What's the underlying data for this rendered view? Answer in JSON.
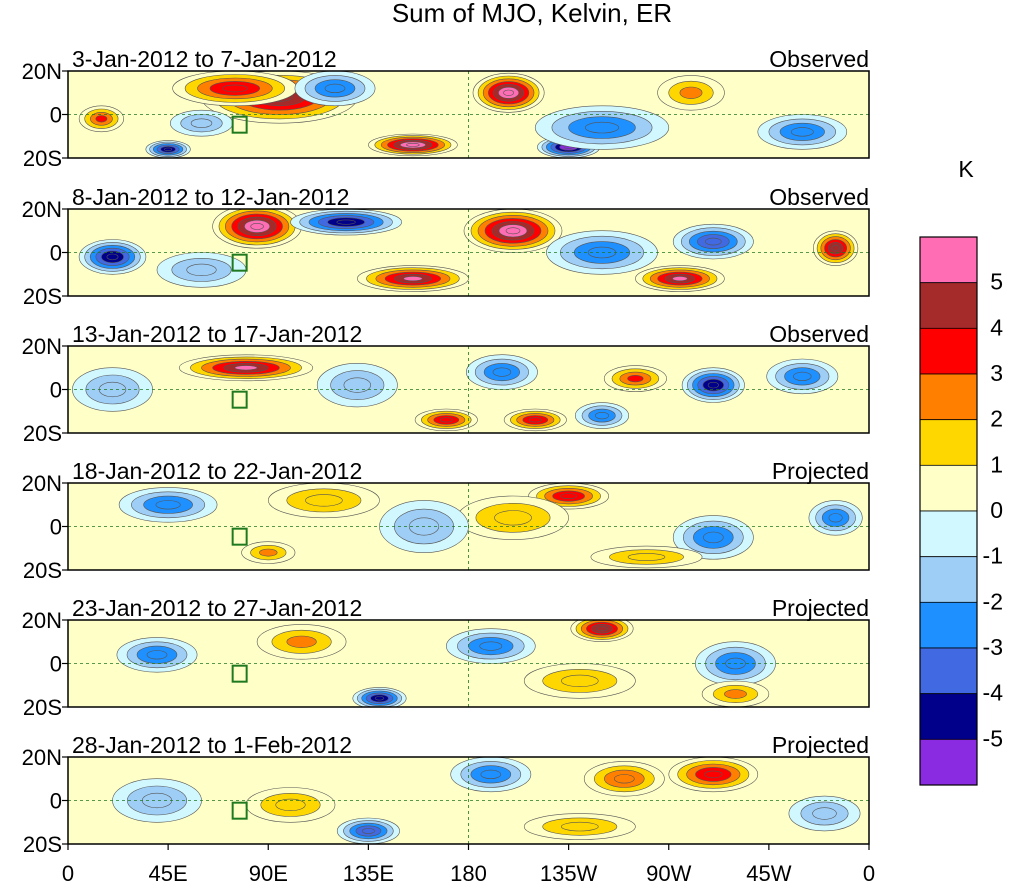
{
  "chart_data": {
    "type": "heatmap",
    "title": "Sum of MJO, Kelvin, ER",
    "units_label": "K",
    "lon_labels": [
      "0",
      "45E",
      "90E",
      "135E",
      "180",
      "135W",
      "90W",
      "45W",
      "0"
    ],
    "lat_labels": [
      "20N",
      "0",
      "20S"
    ],
    "lon_range": [
      0,
      360
    ],
    "lat_range": [
      -20,
      20
    ],
    "colorbar": {
      "labels": [
        "5",
        "4",
        "3",
        "2",
        "1",
        "0",
        "-1",
        "-2",
        "-3",
        "-4",
        "-5"
      ],
      "colors": [
        "#ff6eb4",
        "#a52a2a",
        "#ff0000",
        "#ff7f00",
        "#ffd700",
        "#ffffc8",
        "#d2f8ff",
        "#9ecdf5",
        "#1e90ff",
        "#4169e1",
        "#00008b",
        "#8a2be2"
      ]
    },
    "panels": [
      {
        "date_range": "3-Jan-2012 to 7-Jan-2012",
        "kind": "Observed",
        "blobs": [
          {
            "lon": 95,
            "lat": 8,
            "val": 4.5,
            "rx": 35,
            "ry": 12
          },
          {
            "lon": 75,
            "lat": 12,
            "val": 3.5,
            "rx": 28,
            "ry": 8
          },
          {
            "lon": 198,
            "lat": 10,
            "val": 5.5,
            "rx": 16,
            "ry": 9
          },
          {
            "lon": 155,
            "lat": -14,
            "val": 5.5,
            "rx": 20,
            "ry": 5
          },
          {
            "lon": 225,
            "lat": -15,
            "val": -5.5,
            "rx": 14,
            "ry": 5
          },
          {
            "lon": 240,
            "lat": -6,
            "val": -3,
            "rx": 30,
            "ry": 10
          },
          {
            "lon": 45,
            "lat": -16,
            "val": -5,
            "rx": 10,
            "ry": 4
          },
          {
            "lon": 120,
            "lat": 12,
            "val": -3,
            "rx": 18,
            "ry": 8
          },
          {
            "lon": 15,
            "lat": -2,
            "val": 3,
            "rx": 10,
            "ry": 6
          },
          {
            "lon": 330,
            "lat": -8,
            "val": -2.5,
            "rx": 20,
            "ry": 8
          },
          {
            "lon": 280,
            "lat": 10,
            "val": 2,
            "rx": 15,
            "ry": 8
          },
          {
            "lon": 60,
            "lat": -4,
            "val": -2,
            "rx": 14,
            "ry": 6
          }
        ]
      },
      {
        "date_range": "8-Jan-2012 to 12-Jan-2012",
        "kind": "Observed",
        "blobs": [
          {
            "lon": 85,
            "lat": 12,
            "val": 5.5,
            "rx": 20,
            "ry": 10
          },
          {
            "lon": 200,
            "lat": 10,
            "val": 5.5,
            "rx": 22,
            "ry": 10
          },
          {
            "lon": 155,
            "lat": -12,
            "val": 5,
            "rx": 25,
            "ry": 6
          },
          {
            "lon": 275,
            "lat": -12,
            "val": 5,
            "rx": 20,
            "ry": 6
          },
          {
            "lon": 20,
            "lat": -2,
            "val": -5,
            "rx": 15,
            "ry": 8
          },
          {
            "lon": 125,
            "lat": 14,
            "val": -4.5,
            "rx": 25,
            "ry": 6
          },
          {
            "lon": 345,
            "lat": 2,
            "val": 4.5,
            "rx": 10,
            "ry": 8
          },
          {
            "lon": 290,
            "lat": 5,
            "val": -4,
            "rx": 18,
            "ry": 8
          },
          {
            "lon": 240,
            "lat": 0,
            "val": -2.5,
            "rx": 25,
            "ry": 10
          },
          {
            "lon": 60,
            "lat": -8,
            "val": -2,
            "rx": 20,
            "ry": 8
          }
        ]
      },
      {
        "date_range": "13-Jan-2012 to 17-Jan-2012",
        "kind": "Observed",
        "blobs": [
          {
            "lon": 80,
            "lat": 10,
            "val": 5,
            "rx": 30,
            "ry": 6
          },
          {
            "lon": 290,
            "lat": 2,
            "val": -4.5,
            "rx": 14,
            "ry": 8
          },
          {
            "lon": 170,
            "lat": -14,
            "val": 3.5,
            "rx": 14,
            "ry": 5
          },
          {
            "lon": 210,
            "lat": -14,
            "val": 3.5,
            "rx": 14,
            "ry": 5
          },
          {
            "lon": 255,
            "lat": 5,
            "val": 3,
            "rx": 14,
            "ry": 6
          },
          {
            "lon": 195,
            "lat": 8,
            "val": -3,
            "rx": 16,
            "ry": 8
          },
          {
            "lon": 240,
            "lat": -12,
            "val": -3,
            "rx": 12,
            "ry": 6
          },
          {
            "lon": 20,
            "lat": 0,
            "val": -2,
            "rx": 18,
            "ry": 10
          },
          {
            "lon": 130,
            "lat": 2,
            "val": -2,
            "rx": 18,
            "ry": 10
          },
          {
            "lon": 330,
            "lat": 6,
            "val": -2.5,
            "rx": 16,
            "ry": 8
          }
        ]
      },
      {
        "date_range": "18-Jan-2012 to 22-Jan-2012",
        "kind": "Projected",
        "blobs": [
          {
            "lon": 225,
            "lat": 14,
            "val": 3.5,
            "rx": 18,
            "ry": 6
          },
          {
            "lon": 200,
            "lat": 4,
            "val": 1.5,
            "rx": 25,
            "ry": 10
          },
          {
            "lon": 115,
            "lat": 12,
            "val": 1.5,
            "rx": 25,
            "ry": 8
          },
          {
            "lon": 45,
            "lat": 10,
            "val": -3,
            "rx": 22,
            "ry": 8
          },
          {
            "lon": 160,
            "lat": 0,
            "val": -2,
            "rx": 20,
            "ry": 12
          },
          {
            "lon": 290,
            "lat": -5,
            "val": -2.5,
            "rx": 18,
            "ry": 10
          },
          {
            "lon": 345,
            "lat": 4,
            "val": -3,
            "rx": 12,
            "ry": 8
          },
          {
            "lon": 90,
            "lat": -12,
            "val": 2,
            "rx": 12,
            "ry": 5
          },
          {
            "lon": 260,
            "lat": -14,
            "val": 1.5,
            "rx": 25,
            "ry": 5
          }
        ]
      },
      {
        "date_range": "23-Jan-2012 to 27-Jan-2012",
        "kind": "Projected",
        "blobs": [
          {
            "lon": 240,
            "lat": 16,
            "val": 4.5,
            "rx": 14,
            "ry": 6
          },
          {
            "lon": 140,
            "lat": -16,
            "val": -4.5,
            "rx": 12,
            "ry": 5
          },
          {
            "lon": 40,
            "lat": 4,
            "val": -3,
            "rx": 18,
            "ry": 8
          },
          {
            "lon": 190,
            "lat": 8,
            "val": -3,
            "rx": 20,
            "ry": 8
          },
          {
            "lon": 300,
            "lat": 0,
            "val": -2.5,
            "rx": 18,
            "ry": 10
          },
          {
            "lon": 105,
            "lat": 10,
            "val": 2,
            "rx": 20,
            "ry": 8
          },
          {
            "lon": 230,
            "lat": -8,
            "val": 1.5,
            "rx": 25,
            "ry": 8
          },
          {
            "lon": 300,
            "lat": -14,
            "val": 2,
            "rx": 15,
            "ry": 6
          }
        ]
      },
      {
        "date_range": "28-Jan-2012 to 1-Feb-2012",
        "kind": "Projected",
        "blobs": [
          {
            "lon": 290,
            "lat": 12,
            "val": 3.5,
            "rx": 20,
            "ry": 8
          },
          {
            "lon": 250,
            "lat": 10,
            "val": 2.5,
            "rx": 18,
            "ry": 8
          },
          {
            "lon": 190,
            "lat": 12,
            "val": -3,
            "rx": 18,
            "ry": 8
          },
          {
            "lon": 135,
            "lat": -14,
            "val": -3.5,
            "rx": 14,
            "ry": 6
          },
          {
            "lon": 40,
            "lat": 0,
            "val": -2,
            "rx": 20,
            "ry": 10
          },
          {
            "lon": 100,
            "lat": -2,
            "val": 1.5,
            "rx": 20,
            "ry": 8
          },
          {
            "lon": 230,
            "lat": -12,
            "val": 1.5,
            "rx": 25,
            "ry": 6
          },
          {
            "lon": 340,
            "lat": -6,
            "val": -2,
            "rx": 16,
            "ry": 8
          }
        ]
      }
    ]
  }
}
